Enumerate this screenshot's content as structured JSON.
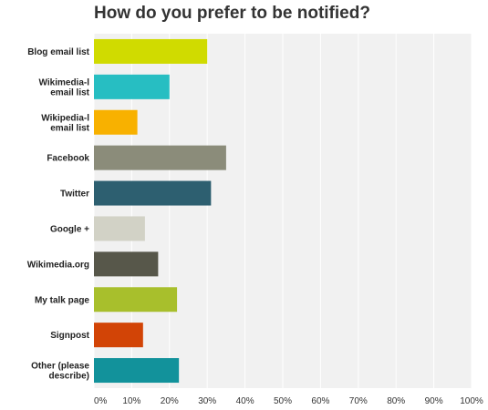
{
  "chart_data": {
    "type": "bar",
    "orientation": "horizontal",
    "title": "How do you prefer to be notified?",
    "categories": [
      [
        "Blog email list"
      ],
      [
        "Wikimedia-l",
        "email list"
      ],
      [
        "Wikipedia-l",
        "email list"
      ],
      [
        "Facebook"
      ],
      [
        "Twitter"
      ],
      [
        "Google +"
      ],
      [
        "Wikimedia.org"
      ],
      [
        "My talk page"
      ],
      [
        "Signpost"
      ],
      [
        "Other (please",
        "describe)"
      ]
    ],
    "values": [
      30,
      20,
      11.5,
      35,
      31,
      13.5,
      17,
      22,
      13,
      22.5
    ],
    "colors": [
      "#d0db00",
      "#27bec2",
      "#f8b100",
      "#8b8c7a",
      "#2d5f70",
      "#d2d2c6",
      "#57574a",
      "#a8bf2c",
      "#d24406",
      "#12929b"
    ],
    "xlim": [
      0,
      100
    ],
    "xticks": [
      "0%",
      "10%",
      "20%",
      "30%",
      "40%",
      "50%",
      "60%",
      "70%",
      "80%",
      "90%",
      "100%"
    ],
    "grid": true,
    "xlabel": "",
    "ylabel": ""
  }
}
